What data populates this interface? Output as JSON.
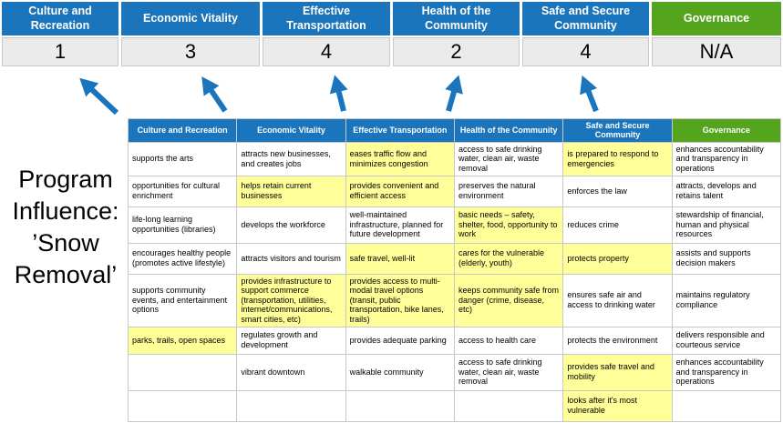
{
  "title": "Program Influence: ’Snow Removal’",
  "colors": {
    "blue": "#1B75BC",
    "green": "#55A41E",
    "highlight": "#FFFF99"
  },
  "scoreboard": [
    {
      "label": "Culture and Recreation",
      "score": "1",
      "type": "blue"
    },
    {
      "label": "Economic Vitality",
      "score": "3",
      "type": "blue"
    },
    {
      "label": "Effective Transportation",
      "score": "4",
      "type": "blue"
    },
    {
      "label": "Health of the Community",
      "score": "2",
      "type": "blue"
    },
    {
      "label": "Safe and Secure Community",
      "score": "4",
      "type": "blue"
    },
    {
      "label": "Governance",
      "score": "N/A",
      "type": "green"
    }
  ],
  "matrix": {
    "headers": [
      {
        "label": "Culture and Recreation",
        "type": "blue"
      },
      {
        "label": "Economic Vitality",
        "type": "blue"
      },
      {
        "label": "Effective Transportation",
        "type": "blue"
      },
      {
        "label": "Health of the Community",
        "type": "blue"
      },
      {
        "label": "Safe and Secure Community",
        "type": "blue"
      },
      {
        "label": "Governance",
        "type": "green"
      }
    ],
    "rows": [
      [
        {
          "t": "supports the arts",
          "hl": false
        },
        {
          "t": "attracts new businesses, and creates jobs",
          "hl": false
        },
        {
          "t": "eases traffic flow and minimizes congestion",
          "hl": true
        },
        {
          "t": "access to safe drinking water, clean air, waste removal",
          "hl": false
        },
        {
          "t": "is prepared to respond to emergencies",
          "hl": true
        },
        {
          "t": "enhances accountability and transparency in operations",
          "hl": false
        }
      ],
      [
        {
          "t": "opportunities for cultural enrichment",
          "hl": false
        },
        {
          "t": "helps retain current businesses",
          "hl": true
        },
        {
          "t": "provides convenient and efficient access",
          "hl": true
        },
        {
          "t": "preserves the natural environment",
          "hl": false
        },
        {
          "t": "enforces the law",
          "hl": false
        },
        {
          "t": "attracts, develops and retains talent",
          "hl": false
        }
      ],
      [
        {
          "t": "life-long learning opportunities (libraries)",
          "hl": false
        },
        {
          "t": "develops the workforce",
          "hl": false
        },
        {
          "t": "well-maintained infrastructure, planned for future development",
          "hl": false
        },
        {
          "t": "basic needs – safety, shelter, food, opportunity to work",
          "hl": true
        },
        {
          "t": "reduces crime",
          "hl": false
        },
        {
          "t": "stewardship of financial, human and physical resources",
          "hl": false
        }
      ],
      [
        {
          "t": "encourages healthy people (promotes active lifestyle)",
          "hl": false
        },
        {
          "t": "attracts visitors and tourism",
          "hl": false
        },
        {
          "t": "safe travel, well-lit",
          "hl": true
        },
        {
          "t": "cares for the vulnerable (elderly, youth)",
          "hl": true
        },
        {
          "t": "protects property",
          "hl": true
        },
        {
          "t": "assists and supports decision makers",
          "hl": false
        }
      ],
      [
        {
          "t": "supports community events, and entertainment options",
          "hl": false
        },
        {
          "t": "provides infrastructure to support commerce (transportation, utilities, internet/communications, smart cities, etc)",
          "hl": true
        },
        {
          "t": "provides access to multi-modal travel options (transit, public transportation, bike lanes, trails)",
          "hl": true
        },
        {
          "t": "keeps community safe from danger (crime, disease, etc)",
          "hl": true
        },
        {
          "t": "ensures safe air and access to drinking water",
          "hl": false
        },
        {
          "t": "maintains regulatory compliance",
          "hl": false
        }
      ],
      [
        {
          "t": "parks, trails, open spaces",
          "hl": true
        },
        {
          "t": "regulates growth and development",
          "hl": false
        },
        {
          "t": "provides adequate parking",
          "hl": false
        },
        {
          "t": "access to health care",
          "hl": false
        },
        {
          "t": "protects the environment",
          "hl": false
        },
        {
          "t": "delivers responsible and courteous service",
          "hl": false
        }
      ],
      [
        {
          "t": "",
          "hl": false
        },
        {
          "t": "vibrant downtown",
          "hl": false
        },
        {
          "t": "walkable community",
          "hl": false
        },
        {
          "t": "access to safe drinking water, clean air, waste removal",
          "hl": false
        },
        {
          "t": "provides safe travel and mobility",
          "hl": true
        },
        {
          "t": "enhances accountability and transparency in operations",
          "hl": false
        }
      ],
      [
        {
          "t": "",
          "hl": false
        },
        {
          "t": "",
          "hl": false
        },
        {
          "t": "",
          "hl": false
        },
        {
          "t": "",
          "hl": false
        },
        {
          "t": "looks after it's most vulnerable",
          "hl": true
        },
        {
          "t": "",
          "hl": false
        }
      ]
    ]
  }
}
